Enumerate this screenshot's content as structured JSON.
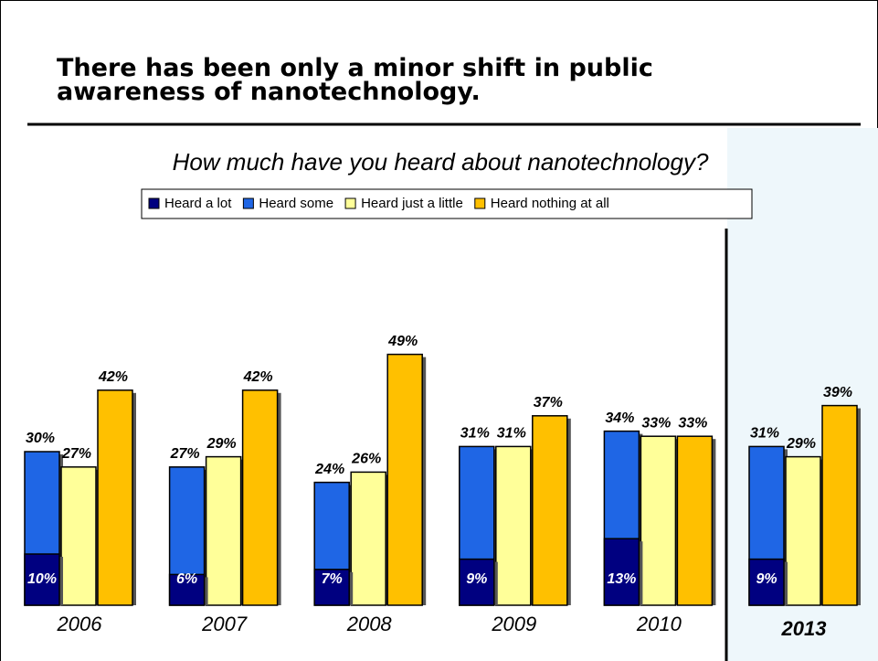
{
  "chart_data": {
    "type": "bar",
    "title_lines": [
      "There has been only a minor shift in public",
      "awareness of nanotechnology."
    ],
    "subtitle": "How much have you heard about nanotechnology?",
    "categories": [
      "2006",
      "2007",
      "2008",
      "2009",
      "2010",
      "2013"
    ],
    "ylim": [
      0,
      70
    ],
    "series": [
      {
        "name": "Heard a lot",
        "color": "#000080",
        "overlay_on": 1,
        "values": [
          10,
          6,
          7,
          9,
          13,
          9
        ],
        "value_labels": [
          "10%",
          "6%",
          "7%",
          "9%",
          "13%",
          "9%"
        ]
      },
      {
        "name": "Heard some",
        "color": "#1f66e5",
        "values": [
          30,
          27,
          24,
          31,
          34,
          31
        ],
        "value_labels": [
          "30%",
          "27%",
          "24%",
          "31%",
          "34%",
          "31%"
        ]
      },
      {
        "name": "Heard just a little",
        "color": "#ffff99",
        "values": [
          27,
          29,
          26,
          31,
          33,
          29
        ],
        "value_labels": [
          "27%",
          "29%",
          "26%",
          "31%",
          "33%",
          "29%"
        ]
      },
      {
        "name": "Heard nothing at all",
        "color": "#ffc000",
        "values": [
          42,
          42,
          49,
          37,
          33,
          39
        ],
        "value_labels": [
          "42%",
          "42%",
          "49%",
          "37%",
          "33%",
          "39%"
        ]
      }
    ]
  }
}
